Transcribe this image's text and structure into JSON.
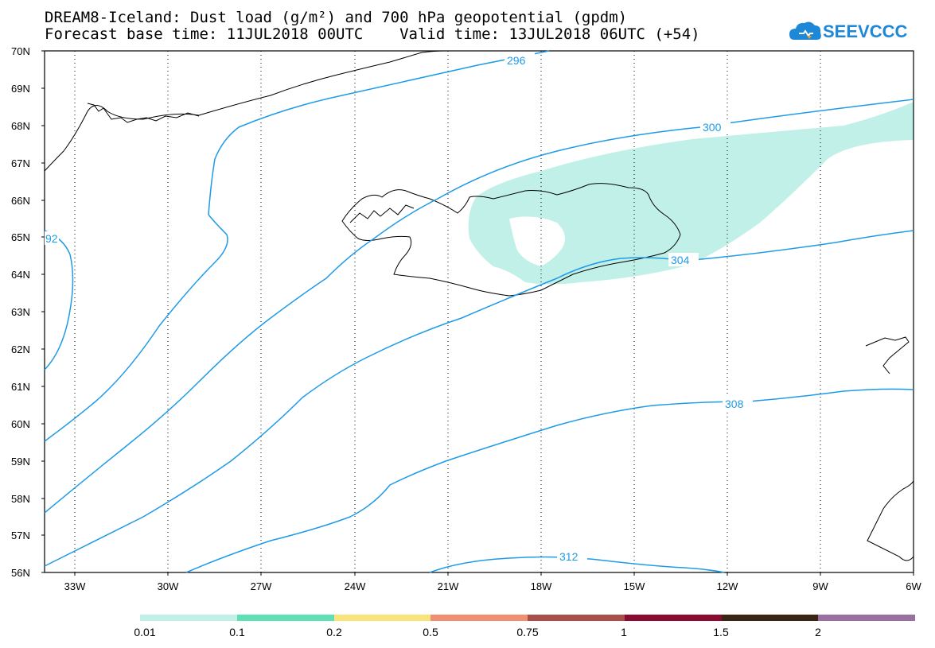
{
  "title": {
    "line1": "DREAM8-Iceland: Dust load (g/m²) and 700 hPa geopotential (gpdm)",
    "line2": "Forecast base time: 11JUL2018 00UTC    Valid time: 13JUL2018 06UTC (+54)"
  },
  "logo": {
    "text": "SEEVCCC",
    "icon": "cloud-icon"
  },
  "axes": {
    "lat_labels": [
      "70N",
      "69N",
      "68N",
      "67N",
      "66N",
      "65N",
      "64N",
      "63N",
      "62N",
      "61N",
      "60N",
      "59N",
      "58N",
      "57N",
      "56N"
    ],
    "lon_labels": [
      "33W",
      "30W",
      "27W",
      "24W",
      "21W",
      "18W",
      "15W",
      "12W",
      "9W",
      "6W"
    ]
  },
  "contours": {
    "color": "#1e9be8",
    "labels": [
      "296",
      "300",
      "304",
      "308",
      "312",
      "92"
    ]
  },
  "colorbar": {
    "colors": [
      "#c0f0e8",
      "#5ee0b4",
      "#f8e47a",
      "#f09070",
      "#a85048",
      "#8a0a30",
      "#3a2414",
      "#9a70a0"
    ],
    "labels": [
      "0.01",
      "0.1",
      "0.2",
      "0.5",
      "0.75",
      "1",
      "1.5",
      "2"
    ]
  }
}
